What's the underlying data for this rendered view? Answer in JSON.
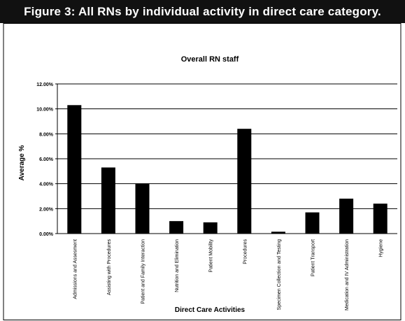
{
  "header": {
    "title": "Figure 3: All RNs by individual activity in direct care category."
  },
  "chart_data": {
    "type": "bar",
    "title": "Overall RN staff",
    "x_label": "Direct Care Activities",
    "y_label": "Average %",
    "categories": [
      "Admissions and Assesment",
      "Assisting with Procedures",
      "Patient and Family Interaction",
      "Nutrition and Elimination",
      "Patient Mobility",
      "Procedures",
      "Specimen Collection and Testing",
      "Patient Transport",
      "Medication and IV Administration",
      "Hygiene"
    ],
    "values": [
      10.3,
      5.3,
      4.0,
      1.0,
      0.9,
      8.4,
      0.15,
      1.7,
      2.8,
      2.4
    ],
    "color": "#000000",
    "ylim": [
      0,
      12
    ],
    "yticks": [
      {
        "value": 0,
        "label": "0.00%"
      },
      {
        "value": 2,
        "label": "2.00%"
      },
      {
        "value": 4,
        "label": "4.00%"
      },
      {
        "value": 6,
        "label": "6.00%"
      },
      {
        "value": 8,
        "label": "8.00%"
      },
      {
        "value": 10,
        "label": "10.00%"
      },
      {
        "value": 12,
        "label": "12.00%"
      }
    ],
    "grid": true
  }
}
